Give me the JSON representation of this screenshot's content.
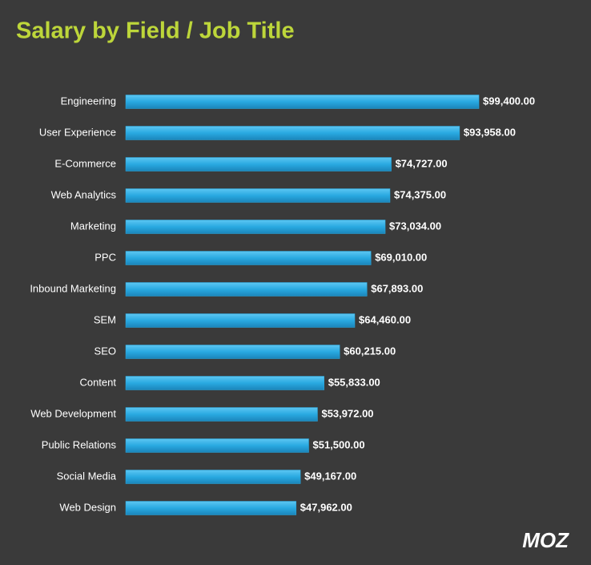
{
  "chart_data": {
    "type": "bar",
    "orientation": "horizontal",
    "title": "Salary by Field / Job Title",
    "categories": [
      "Engineering",
      "User Experience",
      "E-Commerce",
      "Web Analytics",
      "Marketing",
      "PPC",
      "Inbound Marketing",
      "SEM",
      "SEO",
      "Content",
      "Web Development",
      "Public Relations",
      "Social Media",
      "Web Design"
    ],
    "values": [
      99400,
      93958,
      74727,
      74375,
      73034,
      69010,
      67893,
      64460,
      60215,
      55833,
      53972,
      51500,
      49167,
      47962
    ],
    "value_labels": [
      "$99,400.00",
      "$93,958.00",
      "$74,727.00",
      "$74,375.00",
      "$73,034.00",
      "$69,010.00",
      "$67,893.00",
      "$64,460.00",
      "$60,215.00",
      "$55,833.00",
      "$53,972.00",
      "$51,500.00",
      "$49,167.00",
      "$47,962.00"
    ],
    "color": "#29a9e1"
  },
  "logo": "MOZ"
}
